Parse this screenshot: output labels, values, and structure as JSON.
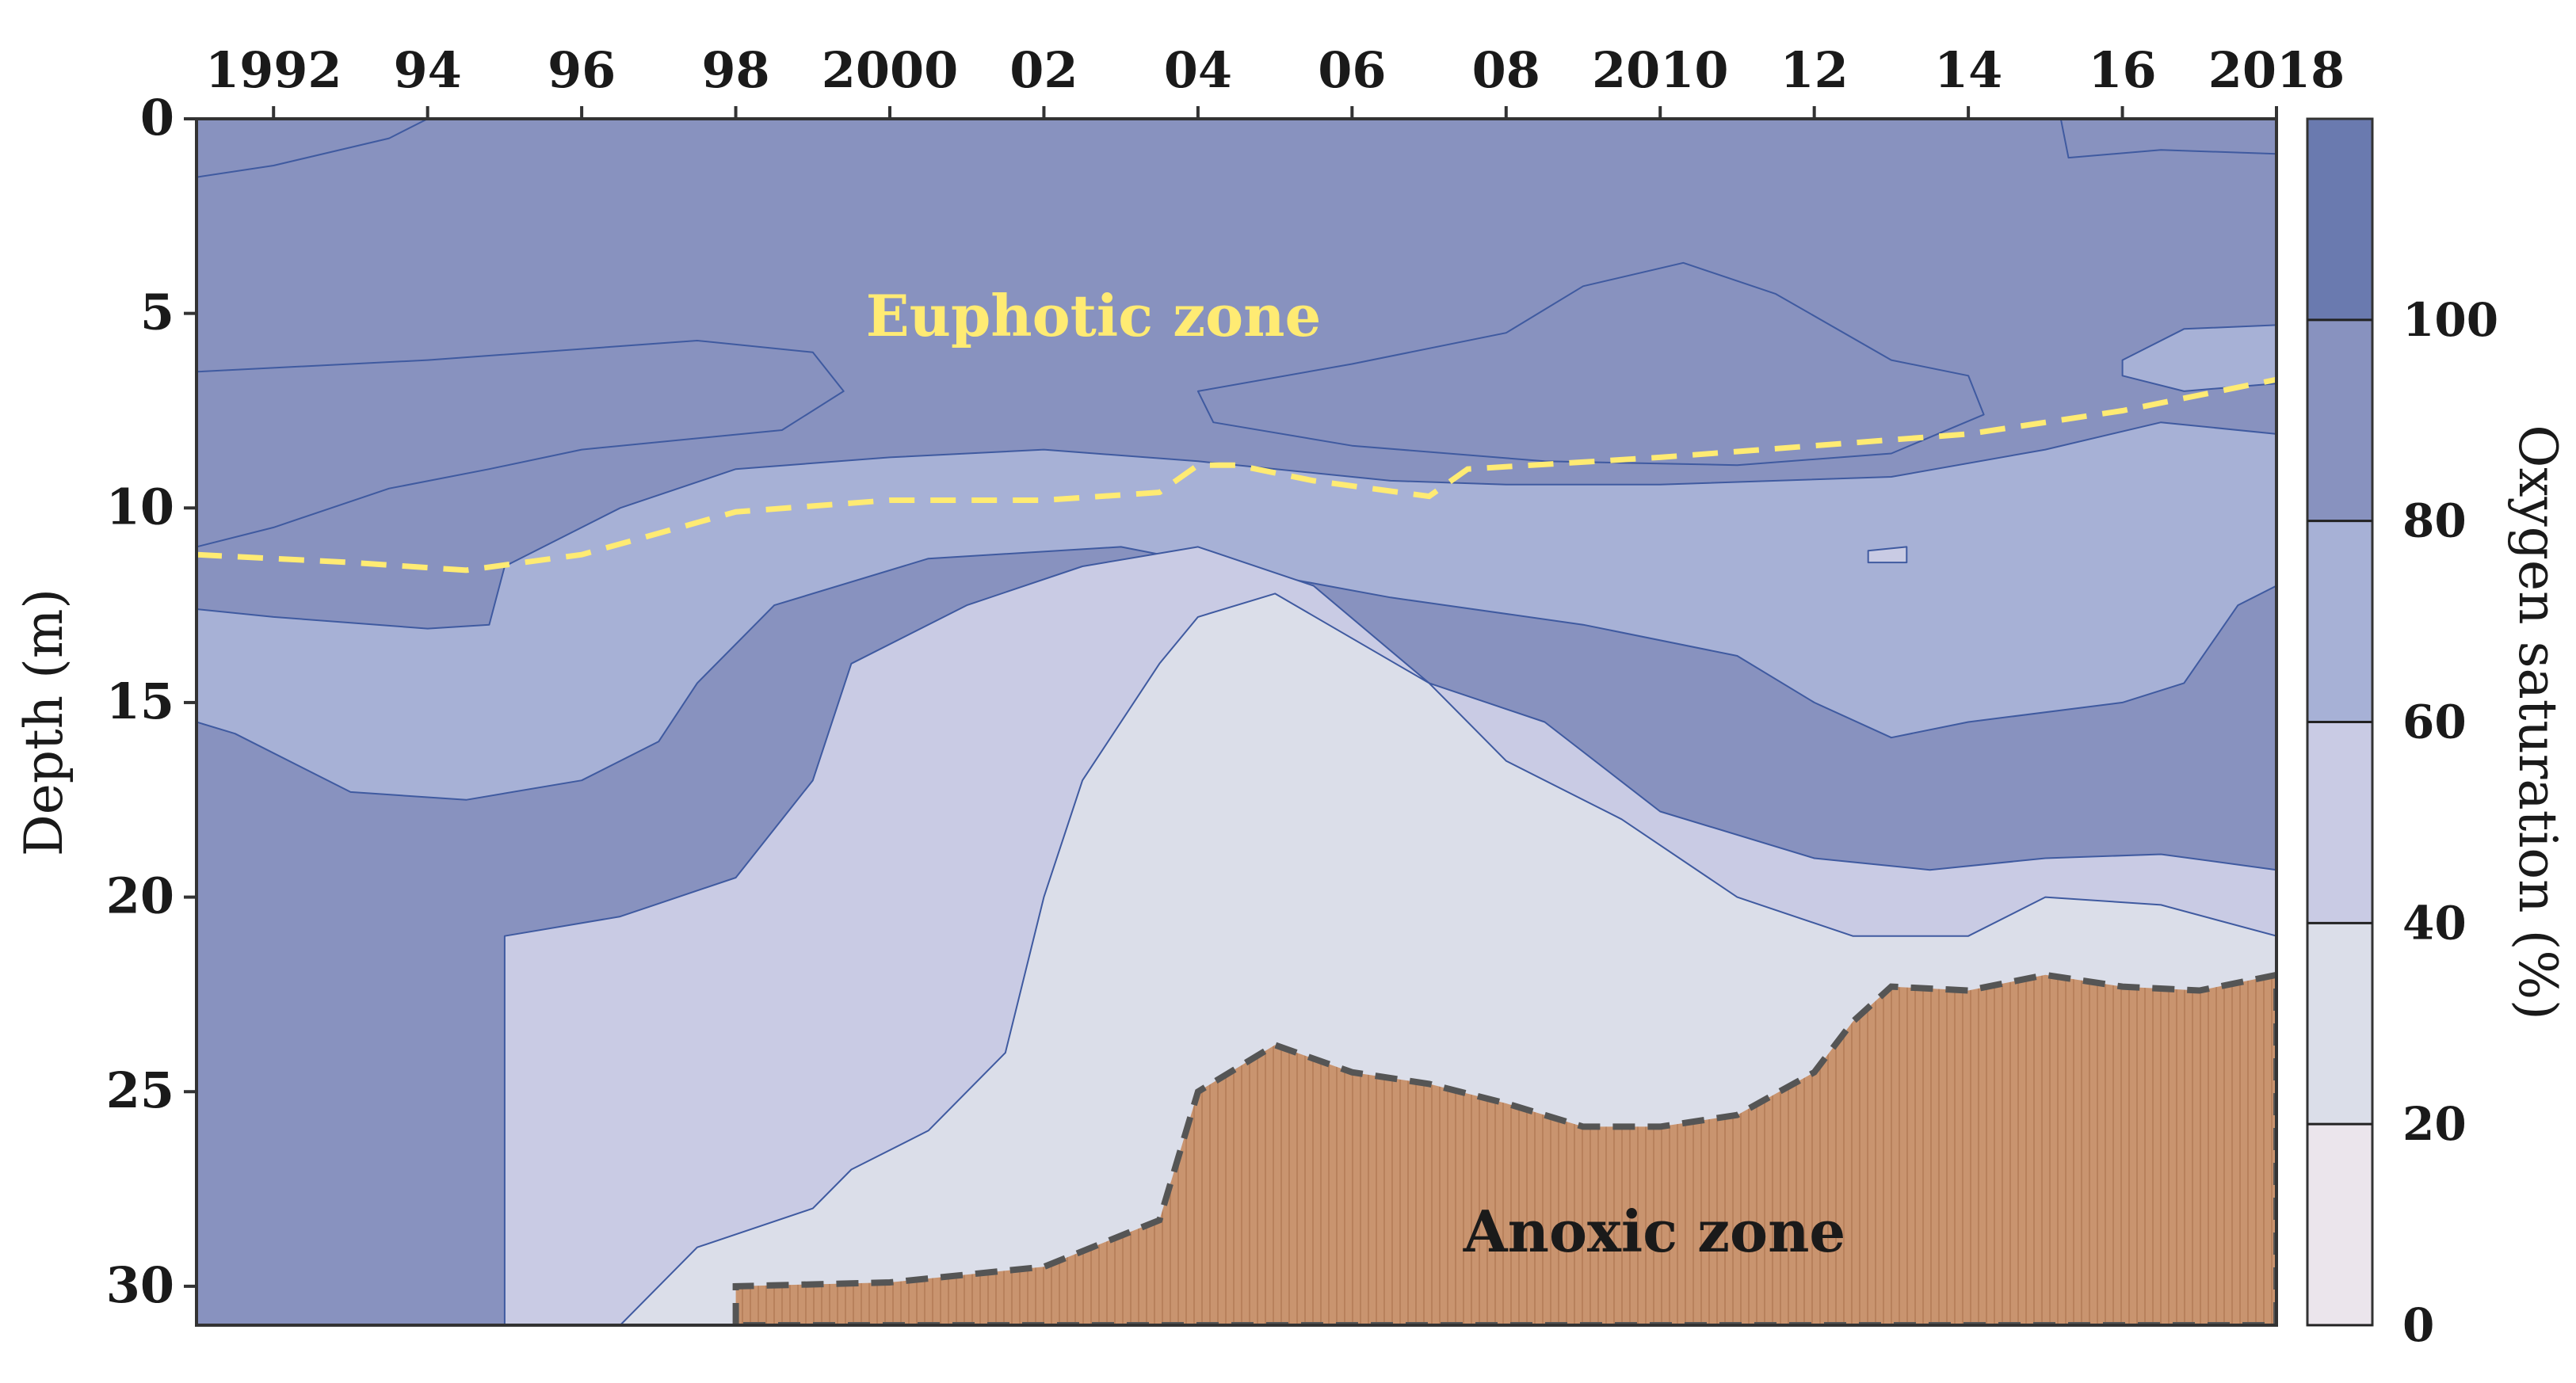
{
  "chart_data": {
    "type": "contour",
    "x_ticks": [
      1992,
      1994,
      1996,
      1998,
      2000,
      2002,
      2004,
      2006,
      2008,
      2010,
      2012,
      2014,
      2016,
      2018
    ],
    "x_tick_labels": [
      "1992",
      "94",
      "96",
      "98",
      "2000",
      "02",
      "04",
      "06",
      "08",
      "2010",
      "12",
      "14",
      "16",
      "2018"
    ],
    "xlim": [
      1991,
      2018
    ],
    "ylabel": "Depth (m)",
    "y_ticks": [
      0,
      5,
      10,
      15,
      20,
      25,
      30
    ],
    "y_tick_labels": [
      "0",
      "5",
      "10",
      "15",
      "20",
      "25",
      "30"
    ],
    "ylim": [
      0,
      31
    ],
    "y_inverted": true,
    "colorbar": {
      "label": "Oxygen saturation (%)",
      "ticks": [
        0,
        20,
        40,
        60,
        80,
        100
      ],
      "tick_labels": [
        "0",
        "20",
        "40",
        "60",
        "80",
        "100"
      ],
      "range": [
        0,
        120
      ],
      "levels": [
        {
          "min": 0,
          "max": 20,
          "color": "#ebe5ec"
        },
        {
          "min": 20,
          "max": 40,
          "color": "#dbdee9"
        },
        {
          "min": 40,
          "max": 60,
          "color": "#c9cbe4"
        },
        {
          "min": 60,
          "max": 80,
          "color": "#a7b1d6"
        },
        {
          "min": 80,
          "max": 100,
          "color": "#8892bf"
        },
        {
          "min": 100,
          "max": 120,
          "color": "#6a7aaf"
        }
      ]
    },
    "contours": [
      {
        "level": 100,
        "polygons": [
          [
            [
              1991.0,
              0
            ],
            [
              1994.0,
              0
            ],
            [
              1993.5,
              0.5
            ],
            [
              1992.0,
              1.2
            ],
            [
              1991.0,
              1.5
            ]
          ],
          [
            [
              2015.2,
              0
            ],
            [
              2018.0,
              0
            ],
            [
              2018.0,
              0.9
            ],
            [
              2016.5,
              0.8
            ],
            [
              2015.3,
              1.0
            ]
          ],
          [
            [
              1991.0,
              6.5
            ],
            [
              1994.0,
              6.2
            ],
            [
              1997.5,
              5.7
            ],
            [
              1999.0,
              6.0
            ],
            [
              1999.4,
              7.0
            ],
            [
              1998.6,
              8.0
            ],
            [
              1996.0,
              8.5
            ],
            [
              1994.8,
              9.0
            ],
            [
              1993.5,
              9.5
            ],
            [
              1992.0,
              10.5
            ],
            [
              1991.0,
              11.0
            ]
          ],
          [
            [
              2004.0,
              7.0
            ],
            [
              2006.0,
              6.3
            ],
            [
              2008.0,
              5.5
            ],
            [
              2009.0,
              4.3
            ],
            [
              2010.3,
              3.7
            ],
            [
              2011.5,
              4.5
            ],
            [
              2013.0,
              6.2
            ],
            [
              2014.0,
              6.6
            ],
            [
              2014.2,
              7.6
            ],
            [
              2013.0,
              8.6
            ],
            [
              2011.0,
              8.9
            ],
            [
              2008.5,
              8.8
            ],
            [
              2006.0,
              8.4
            ],
            [
              2004.2,
              7.8
            ]
          ]
        ]
      },
      {
        "level": 80,
        "polygons": [
          [
            [
              2016.0,
              6.2
            ],
            [
              2016.8,
              5.4
            ],
            [
              2018.0,
              5.3
            ],
            [
              2018.0,
              6.8
            ],
            [
              2016.8,
              7.0
            ],
            [
              2016.0,
              6.6
            ]
          ],
          [
            [
              1991.0,
              12.6
            ],
            [
              1992.0,
              12.8
            ],
            [
              1994.0,
              13.1
            ],
            [
              1994.8,
              13.0
            ],
            [
              1995.0,
              11.5
            ],
            [
              1996.5,
              10.0
            ],
            [
              1998.0,
              9.0
            ],
            [
              2000.0,
              8.7
            ],
            [
              2002.0,
              8.5
            ],
            [
              2004.0,
              8.8
            ],
            [
              2006.5,
              9.3
            ],
            [
              2008.0,
              9.4
            ],
            [
              2010.0,
              9.4
            ],
            [
              2013.0,
              9.2
            ],
            [
              2015.0,
              8.5
            ],
            [
              2016.5,
              7.8
            ],
            [
              2018.0,
              8.1
            ],
            [
              2018.0,
              12.0
            ],
            [
              2017.5,
              12.5
            ],
            [
              2016.8,
              14.5
            ],
            [
              2016.0,
              15.0
            ],
            [
              2014.0,
              15.5
            ],
            [
              2013.0,
              15.9
            ],
            [
              2012.0,
              15.0
            ],
            [
              2011.0,
              13.8
            ],
            [
              2009.0,
              13.0
            ],
            [
              2006.5,
              12.3
            ],
            [
              2004.3,
              11.5
            ],
            [
              2003.0,
              11.0
            ],
            [
              2000.5,
              11.3
            ],
            [
              1998.5,
              12.5
            ],
            [
              1997.5,
              14.5
            ],
            [
              1997.0,
              16.0
            ],
            [
              1996.0,
              17.0
            ],
            [
              1994.5,
              17.5
            ],
            [
              1993.0,
              17.3
            ],
            [
              1991.5,
              15.8
            ],
            [
              1991.0,
              15.5
            ]
          ]
        ]
      },
      {
        "level": 60,
        "polygons": [
          [
            [
              1995.0,
              21.0
            ],
            [
              1996.5,
              20.5
            ],
            [
              1998.0,
              19.5
            ],
            [
              1999.0,
              17.0
            ],
            [
              1999.5,
              14.0
            ],
            [
              2001.0,
              12.5
            ],
            [
              2002.5,
              11.5
            ],
            [
              2004.0,
              11.0
            ],
            [
              2005.5,
              12.0
            ],
            [
              2007.0,
              14.5
            ],
            [
              2008.5,
              15.5
            ],
            [
              2010.0,
              17.8
            ],
            [
              2012.0,
              19.0
            ],
            [
              2013.5,
              19.3
            ],
            [
              2015.0,
              19.0
            ],
            [
              2016.5,
              18.9
            ],
            [
              2018.0,
              19.3
            ],
            [
              2018.0,
              31.0
            ],
            [
              1995.0,
              31.0
            ]
          ],
          [
            [
              2012.7,
              11.1
            ],
            [
              2013.2,
              11.0
            ],
            [
              2013.2,
              11.4
            ],
            [
              2012.7,
              11.4
            ]
          ]
        ]
      },
      {
        "level": 40,
        "polygons": [
          [
            [
              1996.5,
              31.0
            ],
            [
              1997.5,
              29.0
            ],
            [
              1999.0,
              28.0
            ],
            [
              1999.5,
              27.0
            ],
            [
              2000.5,
              26.0
            ],
            [
              2001.5,
              24.0
            ],
            [
              2002.0,
              20.0
            ],
            [
              2002.5,
              17.0
            ],
            [
              2003.5,
              14.0
            ],
            [
              2004.0,
              12.8
            ],
            [
              2005.0,
              12.2
            ],
            [
              2007.0,
              14.5
            ],
            [
              2008.0,
              16.5
            ],
            [
              2009.5,
              18.0
            ],
            [
              2011.0,
              20.0
            ],
            [
              2012.5,
              21.0
            ],
            [
              2014.0,
              21.0
            ],
            [
              2015.0,
              20.0
            ],
            [
              2016.5,
              20.2
            ],
            [
              2018.0,
              21.0
            ],
            [
              2018.0,
              31.0
            ]
          ]
        ]
      }
    ],
    "euphotic_zone_depth": {
      "label": "Euphotic zone",
      "color": "#ffeb73",
      "x": [
        1991,
        1993,
        1994.5,
        1996,
        1998,
        2000,
        2002,
        2003.5,
        2004,
        2004.5,
        2005.5,
        2007.0,
        2007.5,
        2010,
        2012,
        2014,
        2016,
        2018
      ],
      "y": [
        11.2,
        11.4,
        11.6,
        11.2,
        10.1,
        9.8,
        9.8,
        9.6,
        8.9,
        8.9,
        9.3,
        9.7,
        9.0,
        8.7,
        8.4,
        8.1,
        7.5,
        6.7
      ]
    },
    "anoxic_zone": {
      "label": "Anoxic zone",
      "color": "#c9946f",
      "x": [
        1998.0,
        2000.0,
        2002.0,
        2003.5,
        2004.0,
        2005.0,
        2006.0,
        2007.0,
        2008.0,
        2009.0,
        2010.0,
        2011.0,
        2012.0,
        2012.5,
        2013.0,
        2014.0,
        2015.0,
        2016.0,
        2017.0,
        2018.0
      ],
      "y": [
        30.0,
        29.9,
        29.5,
        28.3,
        25.0,
        23.8,
        24.5,
        24.8,
        25.3,
        25.9,
        25.9,
        25.6,
        24.5,
        23.2,
        22.3,
        22.4,
        22.0,
        22.3,
        22.4,
        22.0
      ]
    },
    "annotations": [
      "Euphotic zone",
      "Anoxic zone"
    ]
  }
}
